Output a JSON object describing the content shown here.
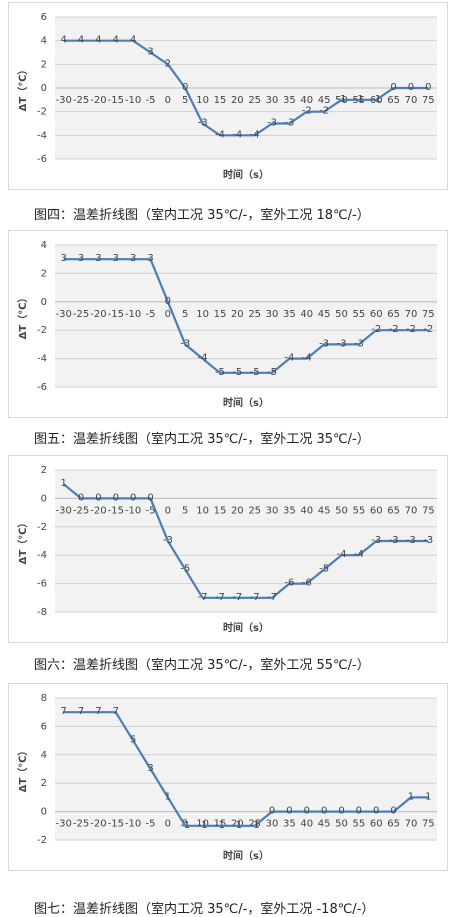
{
  "chart_data": [
    {
      "type": "line",
      "caption": "图四：温差折线图（室内工况 35℃/-，室外工况 18℃/-）",
      "x_label": "时间（s）",
      "y_label": "ΔT（℃）",
      "categories": [
        -30,
        -25,
        -20,
        -15,
        -10,
        -5,
        0,
        5,
        10,
        15,
        20,
        25,
        30,
        35,
        40,
        45,
        50,
        55,
        60,
        65,
        70,
        75
      ],
      "series": [
        {
          "color": "#4a7ebb",
          "values": [
            4,
            4,
            4,
            4,
            4,
            3,
            2,
            0,
            -3,
            -4,
            -4,
            -4,
            -3,
            -3,
            -2,
            -2,
            -1,
            -1,
            -1,
            0,
            0,
            0
          ]
        }
      ],
      "ylim": [
        -6,
        6
      ],
      "yticks": [
        -6,
        -4,
        -2,
        0,
        2,
        4,
        6
      ],
      "grid": true
    },
    {
      "type": "line",
      "caption": "图五：温差折线图（室内工况 35℃/-，室外工况 35℃/-）",
      "x_label": "时间（s）",
      "y_label": "ΔT（℃）",
      "categories": [
        -30,
        -25,
        -20,
        -15,
        -10,
        -5,
        0,
        5,
        10,
        15,
        20,
        25,
        30,
        35,
        40,
        45,
        50,
        55,
        60,
        65,
        70,
        75
      ],
      "series": [
        {
          "color": "#4a7ebb",
          "values": [
            3,
            3,
            3,
            3,
            3,
            3,
            0,
            -3,
            -4,
            -5,
            -5,
            -5,
            -5,
            -4,
            -4,
            -3,
            -3,
            -3,
            -2,
            -2,
            -2,
            -2
          ]
        }
      ],
      "ylim": [
        -6,
        4
      ],
      "yticks": [
        -6,
        -4,
        -2,
        0,
        2,
        4
      ],
      "grid": true
    },
    {
      "type": "line",
      "caption": "图六：温差折线图（室内工况 35℃/-，室外工况 55℃/-）",
      "x_label": "时间（s）",
      "y_label": "ΔT（℃）",
      "categories": [
        -30,
        -25,
        -20,
        -15,
        -10,
        -5,
        0,
        5,
        10,
        15,
        20,
        25,
        30,
        35,
        40,
        45,
        50,
        55,
        60,
        65,
        70,
        75
      ],
      "series": [
        {
          "color": "#4a7ebb",
          "values": [
            1,
            0,
            0,
            0,
            0,
            0,
            -3,
            -5,
            -7,
            -7,
            -7,
            -7,
            -7,
            -6,
            -6,
            -5,
            -4,
            -4,
            -3,
            -3,
            -3,
            -3
          ]
        }
      ],
      "ylim": [
        -8,
        2
      ],
      "yticks": [
        -8,
        -6,
        -4,
        -2,
        0,
        2
      ],
      "grid": true
    },
    {
      "type": "line",
      "caption": "图七：温差折线图（室内工况 35℃/-，室外工况 -18℃/-）",
      "x_label": "时间（s）",
      "y_label": "ΔT（℃）",
      "categories": [
        -30,
        -25,
        -20,
        -15,
        -10,
        -5,
        0,
        5,
        10,
        15,
        20,
        25,
        30,
        35,
        40,
        45,
        50,
        55,
        60,
        65,
        70,
        75
      ],
      "series": [
        {
          "color": "#4a7ebb",
          "values": [
            7,
            7,
            7,
            7,
            5,
            3,
            1,
            -1,
            -1,
            -1,
            -1,
            -1,
            0,
            0,
            0,
            0,
            0,
            0,
            0,
            0,
            1,
            1
          ]
        }
      ],
      "ylim": [
        -2,
        8
      ],
      "yticks": [
        -2,
        0,
        2,
        4,
        6,
        8
      ],
      "grid": true
    }
  ]
}
